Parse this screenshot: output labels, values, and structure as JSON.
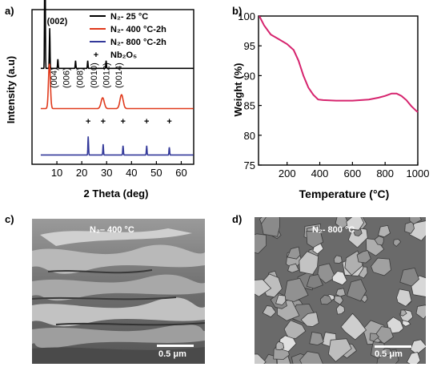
{
  "panels": {
    "a": {
      "letter": "a)"
    },
    "b": {
      "letter": "b)"
    },
    "c": {
      "letter": "c)",
      "condition_label": "N₂– 400 °C",
      "scale_label": "0.5 μm"
    },
    "d": {
      "letter": "d)",
      "condition_label": "N₂- 800 °C",
      "scale_label": "0.5 μm"
    }
  },
  "chart_data": [
    {
      "type": "line",
      "xlabel": "2 Theta (deg)",
      "ylabel": "Intensity (a.u)",
      "xlim": [
        0,
        65
      ],
      "y_tick_labels": false,
      "x_ticks": [
        10,
        20,
        30,
        40,
        50,
        60
      ],
      "legend": {
        "placement": "top-right",
        "entries": [
          "N₂- 25 °C",
          "N₂- 400 °C-2h",
          "N₂- 800 °C-2h",
          "Nb₂O₅"
        ]
      },
      "annotations": [
        "(002)",
        "(004)",
        "(006)",
        "(008)",
        "(0010)",
        "(0012)",
        "(0014)"
      ],
      "series": [
        {
          "name": "N₂- 25 °C",
          "color": "#000000",
          "baseline": 0.62,
          "peaks": [
            [
              5.2,
              1.0
            ],
            [
              7.1,
              0.26
            ],
            [
              10.4,
              0.06
            ],
            [
              17.5,
              0.05
            ],
            [
              22.4,
              0.05
            ],
            [
              29.8,
              0.05
            ]
          ]
        },
        {
          "name": "N₂- 400 °C-2h",
          "color": "#e0391b",
          "baseline": 0.36,
          "peaks": [
            [
              7.0,
              0.29
            ],
            [
              28.4,
              0.07
            ],
            [
              36.0,
              0.09
            ]
          ]
        },
        {
          "name": "N₂- 800 °C-2h",
          "color": "#33399a",
          "baseline": 0.06,
          "peaks": [
            [
              22.6,
              0.12
            ],
            [
              28.6,
              0.07
            ],
            [
              36.6,
              0.06
            ],
            [
              46.1,
              0.06
            ],
            [
              55.2,
              0.05
            ]
          ]
        }
      ],
      "nb2o5_markers": [
        22.6,
        28.6,
        36.6,
        46.1,
        55.2
      ]
    },
    {
      "type": "line",
      "xlabel": "Temperature (°C)",
      "ylabel": "Weight (%)",
      "xlim": [
        25,
        1000
      ],
      "ylim": [
        75,
        100
      ],
      "x_ticks": [
        200,
        400,
        600,
        800,
        1000
      ],
      "y_ticks": [
        75,
        80,
        85,
        90,
        95,
        100
      ],
      "series": [
        {
          "color": "#d6246e",
          "x": [
            30,
            60,
            100,
            150,
            200,
            240,
            270,
            300,
            330,
            360,
            390,
            420,
            500,
            600,
            700,
            760,
            800,
            840,
            870,
            900,
            930,
            960,
            990,
            1000
          ],
          "y": [
            100,
            98.4,
            96.9,
            96.1,
            95.3,
            94.3,
            92.5,
            90.0,
            88.0,
            86.8,
            86.0,
            85.9,
            85.8,
            85.8,
            86.0,
            86.3,
            86.6,
            87.0,
            87.0,
            86.6,
            85.9,
            84.9,
            84.1,
            83.9
          ]
        }
      ]
    }
  ]
}
